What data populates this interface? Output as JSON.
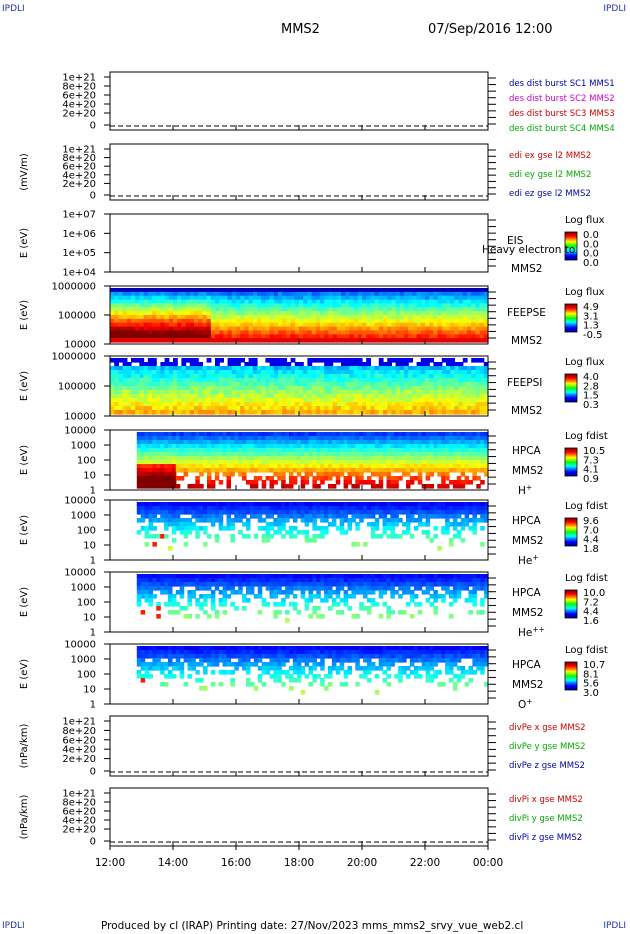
{
  "corner_labels": {
    "tl": "IPDLI",
    "tr": "IPDLI",
    "bl": "IPDLI",
    "br": "IPDLI"
  },
  "header": {
    "spacecraft": "MMS2",
    "datetime": "07/Sep/2016 12:00"
  },
  "footer": {
    "text": "Produced by cl (IRAP)   Printing date: 27/Nov/2023   mms_mms2_srvy_vue_web2.cl"
  },
  "chart_data": {
    "type": "heatmap",
    "x_axis": {
      "ticks": [
        "12:00",
        "14:00",
        "16:00",
        "18:00",
        "20:00",
        "22:00",
        "00:00"
      ],
      "range_hours": [
        12,
        24
      ]
    },
    "panels": [
      {
        "id": "p1",
        "type": "line",
        "ylabel": "",
        "yticks": [
          "1e+21",
          "8e+20",
          "6e+20",
          "4e+20",
          "2e+20",
          "0"
        ],
        "legend": [
          {
            "text": "des dist burst SC1 MMS1",
            "color": "#0000aa"
          },
          {
            "text": "des dist burst SC2 MMS2",
            "color": "#cc00cc"
          },
          {
            "text": "des dist burst SC3 MMS3",
            "color": "#cc0000"
          },
          {
            "text": "des dist burst SC4 MMS4",
            "color": "#00aa00"
          }
        ]
      },
      {
        "id": "p2",
        "type": "line",
        "ylabel": "(mV/m)",
        "yticks": [
          "1e+21",
          "8e+20",
          "6e+20",
          "4e+20",
          "2e+20",
          "0"
        ],
        "legend": [
          {
            "text": "edi ex gse l2 MMS2",
            "color": "#cc0000"
          },
          {
            "text": "edi ey gse l2 MMS2",
            "color": "#00aa00"
          },
          {
            "text": "edi ez gse l2 MMS2",
            "color": "#0000aa"
          }
        ]
      },
      {
        "id": "p3",
        "type": "spectrogram",
        "ylabel": "E (eV)",
        "yticks": [
          "1e+07",
          "1e+06",
          "1e+05",
          "1e+04"
        ],
        "instrument": "EIS",
        "instrument2": "MMS2",
        "overlay": "Heavy electron to",
        "cbar_title": "Log flux",
        "cbar_ticks": [
          "0.0",
          "0.0",
          "0.0",
          "0.0"
        ],
        "data": "empty"
      },
      {
        "id": "p4",
        "type": "spectrogram",
        "ylabel": "E (eV)",
        "yticks": [
          "1000000",
          "100000",
          "10000"
        ],
        "instrument": "FEEPSE",
        "instrument2": "MMS2",
        "cbar_title": "Log flux",
        "cbar_ticks": [
          "4.9",
          "3.1",
          "1.3",
          "-0.5"
        ],
        "data": {
          "start_h": 12.0,
          "end_h": 24.0,
          "hot_until_h": 15.2
        }
      },
      {
        "id": "p5",
        "type": "spectrogram",
        "ylabel": "E (eV)",
        "yticks": [
          "1000000",
          "100000",
          "10000"
        ],
        "instrument": "FEEPSI",
        "instrument2": "MMS2",
        "cbar_title": "Log flux",
        "cbar_ticks": [
          "4.0",
          "2.8",
          "1.5",
          "0.3"
        ],
        "data": {
          "start_h": 12.0,
          "end_h": 24.0
        }
      },
      {
        "id": "p6",
        "type": "spectrogram",
        "ylabel": "E (eV)",
        "yticks": [
          "10000",
          "1000",
          "100",
          "10",
          "1"
        ],
        "instrument": "HPCA",
        "instrument2": "MMS2",
        "species": "H",
        "species_sup": "+",
        "cbar_title": "Log fdist",
        "cbar_ticks": [
          "10.5",
          "7.3",
          "4.1",
          "0.9"
        ],
        "data": {
          "start_h": 12.85,
          "end_h": 24.0
        }
      },
      {
        "id": "p7",
        "type": "spectrogram",
        "ylabel": "E (eV)",
        "yticks": [
          "10000",
          "1000",
          "100",
          "10",
          "1"
        ],
        "instrument": "HPCA",
        "instrument2": "MMS2",
        "species": "He",
        "species_sup": "+",
        "cbar_title": "Log fdist",
        "cbar_ticks": [
          "9.6",
          "7.0",
          "4.4",
          "1.8"
        ],
        "data": {
          "start_h": 12.85,
          "end_h": 24.0
        }
      },
      {
        "id": "p8",
        "type": "spectrogram",
        "ylabel": "E (eV)",
        "yticks": [
          "10000",
          "1000",
          "100",
          "10",
          "1"
        ],
        "instrument": "HPCA",
        "instrument2": "MMS2",
        "species": "He",
        "species_sup": "++",
        "cbar_title": "Log fdist",
        "cbar_ticks": [
          "10.0",
          "7.2",
          "4.4",
          "1.6"
        ],
        "data": {
          "start_h": 12.85,
          "end_h": 24.0
        }
      },
      {
        "id": "p9",
        "type": "spectrogram",
        "ylabel": "E (eV)",
        "yticks": [
          "10000",
          "1000",
          "100",
          "10",
          "1"
        ],
        "instrument": "HPCA",
        "instrument2": "MMS2",
        "species": "O",
        "species_sup": "+",
        "cbar_title": "Log fdist",
        "cbar_ticks": [
          "10.7",
          "8.1",
          "5.6",
          "3.0"
        ],
        "data": {
          "start_h": 12.85,
          "end_h": 24.0
        }
      },
      {
        "id": "p10",
        "type": "line",
        "ylabel": "(nPa/km)",
        "yticks": [
          "1e+21",
          "8e+20",
          "6e+20",
          "4e+20",
          "2e+20",
          "0"
        ],
        "legend": [
          {
            "text": "divPe x gse MMS2",
            "color": "#cc0000"
          },
          {
            "text": "divPe y gse MMS2",
            "color": "#00aa00"
          },
          {
            "text": "divPe z gse MMS2",
            "color": "#0000aa"
          }
        ]
      },
      {
        "id": "p11",
        "type": "line",
        "ylabel": "(nPa/km)",
        "yticks": [
          "1e+21",
          "8e+20",
          "6e+20",
          "4e+20",
          "2e+20",
          "0"
        ],
        "legend": [
          {
            "text": "divPi x gse MMS2",
            "color": "#cc0000"
          },
          {
            "text": "divPi y gse MMS2",
            "color": "#00aa00"
          },
          {
            "text": "divPi z gse MMS2",
            "color": "#0000aa"
          }
        ]
      }
    ]
  }
}
